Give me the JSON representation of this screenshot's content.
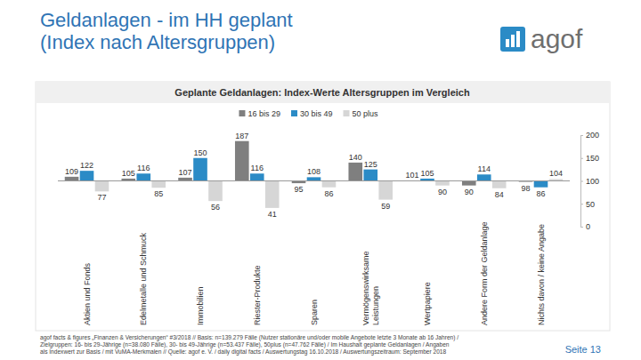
{
  "chart_data": {
    "type": "bar",
    "title": "Geldanlagen - im HH geplant\n(Index nach Altersgruppen)",
    "subtitle": "Geplante Geldanlagen: Index-Werte Altersgruppen im Vergleich",
    "logo": "agof",
    "categories": [
      "Aktien und Fonds",
      "Edelmetalle und Schmuck",
      "Immobilien",
      "Riester-Produkte",
      "Sparen",
      "Vermögenswirksame\nLeistungen",
      "Wertpapiere",
      "Andere Form der Geldanlage",
      "Nichts davon / keine Angabe"
    ],
    "series": [
      {
        "name": "16 bis 29",
        "color": "#7f7f7f",
        "values": [
          109,
          105,
          107,
          187,
          95,
          140,
          101,
          90,
          98
        ]
      },
      {
        "name": "30 bis 49",
        "color": "#2b8bc6",
        "values": [
          122,
          116,
          150,
          116,
          108,
          125,
          105,
          114,
          86
        ]
      },
      {
        "name": "50 plus",
        "color": "#d6d6d6",
        "values": [
          77,
          85,
          56,
          41,
          86,
          59,
          90,
          84,
          104
        ]
      }
    ],
    "baseline": 100,
    "ylim": [
      0,
      200
    ],
    "yticks": [
      0,
      50,
      100,
      150,
      200
    ],
    "grid": false,
    "legend": "top",
    "data_labels": true,
    "footer": [
      "agof facts & figures „Finanzen & Versicherungen“ #3/2018 // Basis: n=139.279 Fälle (Nutzer stationäre und/oder mobile Angebote letzte 3 Monate ab 16 Jahren) /",
      "Zielgruppen: 16- bis 29-Jährige (n=38.080 Fälle), 30- bis 49-Jährige (n=53.437 Fälle), 50plus (n=47.762 Fälle) / Im Haushalt geplante Geldanlagen / Angaben",
      "als Indexwert zur Basis / mit VuMA-Merkmalen // Quelle: agof e. V. / daily digital facts / Auswertungstag 16.10.2018 / Auswertungszeitraum: September 2018"
    ],
    "page": "Seite 13"
  }
}
